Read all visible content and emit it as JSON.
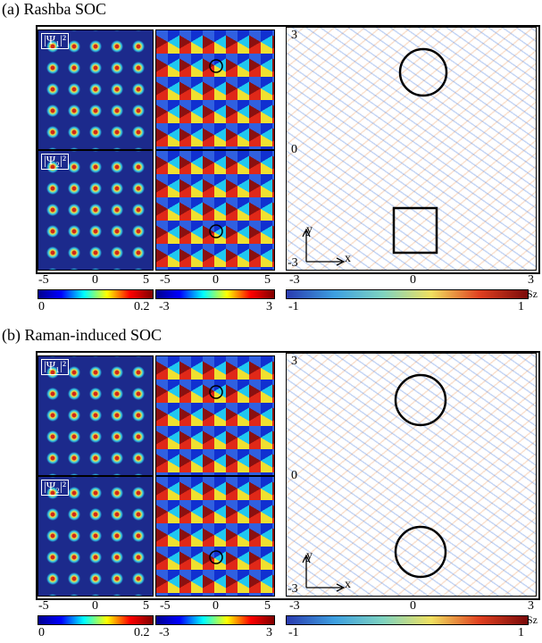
{
  "panels": [
    {
      "title": "(a) Rashba SOC",
      "density": {
        "labels": [
          "|Ψ₁|²",
          "|Ψ₂|²"
        ],
        "x_ticks": [
          "-5",
          "0",
          "5"
        ],
        "colorbar": [
          "0",
          "0.2"
        ]
      },
      "phase": {
        "x_ticks": [
          "-5",
          "0",
          "5"
        ],
        "colorbar": [
          "-3",
          "3"
        ]
      },
      "spin": {
        "y_ticks": [
          "3",
          "0",
          "-3"
        ],
        "x_ticks": [
          "-3",
          "0",
          "3"
        ],
        "axes": [
          "y",
          "x"
        ],
        "colorbar": [
          "-1",
          "1"
        ],
        "colorbar_title": "Sz"
      }
    },
    {
      "title": "(b) Raman-induced SOC",
      "density": {
        "labels": [
          "|Ψ₁|²",
          "|Ψ₂|²"
        ],
        "x_ticks": [
          "-5",
          "0",
          "5"
        ],
        "colorbar": [
          "0",
          "0.2"
        ]
      },
      "phase": {
        "x_ticks": [
          "-5",
          "0",
          "5"
        ],
        "colorbar": [
          "-3",
          "3"
        ]
      },
      "spin": {
        "y_ticks": [
          "3",
          "0",
          "-3"
        ],
        "x_ticks": [
          "-3",
          "0",
          "3"
        ],
        "axes": [
          "y",
          "x"
        ],
        "colorbar": [
          "-1",
          "1"
        ],
        "colorbar_title": "Sz"
      }
    }
  ]
}
